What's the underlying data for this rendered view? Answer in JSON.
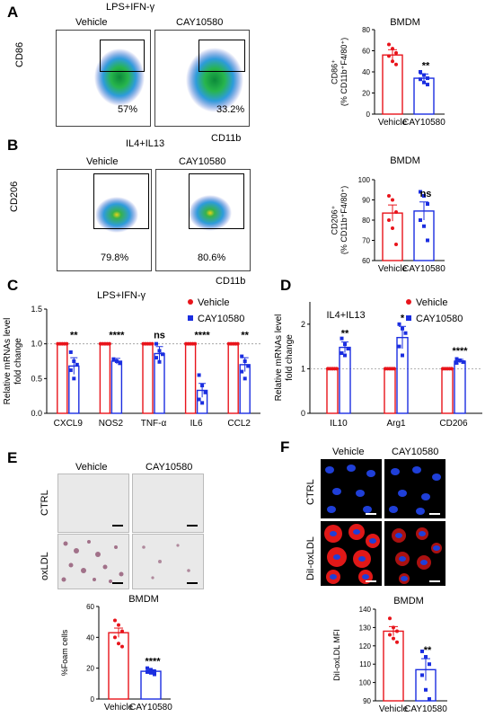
{
  "panels": {
    "A": {
      "letter": "A",
      "condition": "LPS+IFN-γ",
      "groups": [
        "Vehicle",
        "CAY10580"
      ],
      "y_marker": "CD86",
      "x_marker": "CD11b",
      "percents": [
        "57%",
        "33.2%"
      ]
    },
    "B": {
      "letter": "B",
      "condition": "IL4+IL13",
      "groups": [
        "Vehicle",
        "CAY10580"
      ],
      "y_marker": "CD206",
      "x_marker": "CD11b",
      "percents": [
        "79.8%",
        "80.6%"
      ]
    },
    "C": {
      "letter": "C"
    },
    "D": {
      "letter": "D"
    },
    "E": {
      "letter": "E",
      "groups": [
        "Vehicle",
        "CAY10580"
      ],
      "rows": [
        "CTRL",
        "oxLDL"
      ]
    },
    "F": {
      "letter": "F",
      "groups": [
        "Vehicle",
        "CAY10580"
      ],
      "rows": [
        "CTRL",
        "DiI-oxLDL"
      ]
    }
  },
  "colors": {
    "vehicle": "#e8141b",
    "cay": "#1b2ee0"
  },
  "chart_data": [
    {
      "id": "A-bar",
      "type": "bar",
      "title": "BMDM",
      "ylabel_line1": "CD86⁺",
      "ylabel_line2": "(% CD11b⁺F4/80⁺)",
      "categories": [
        "Vehicle",
        "CAY10580"
      ],
      "values": [
        56,
        34
      ],
      "errors": [
        5,
        4
      ],
      "points": [
        [
          66,
          62,
          58,
          55,
          50,
          47
        ],
        [
          40,
          37,
          34,
          33,
          30,
          28
        ]
      ],
      "significance": [
        "",
        "**"
      ],
      "ylim": [
        0,
        80
      ],
      "yticks": [
        0,
        20,
        40,
        60,
        80
      ]
    },
    {
      "id": "B-bar",
      "type": "bar",
      "title": "BMDM",
      "ylabel_line1": "CD206⁺",
      "ylabel_line2": "(% CD11b⁺F4/80⁺)",
      "categories": [
        "Vehicle",
        "CAY10580"
      ],
      "values": [
        83.5,
        84.5
      ],
      "errors": [
        4,
        4.5
      ],
      "points": [
        [
          92,
          90,
          84,
          80,
          76,
          68
        ],
        [
          94,
          92,
          88,
          80,
          77,
          70
        ]
      ],
      "significance": [
        "",
        "ns"
      ],
      "ylim": [
        60,
        100
      ],
      "yticks": [
        60,
        70,
        80,
        90,
        100
      ]
    },
    {
      "id": "C-bar",
      "type": "bar",
      "title": "LPS+IFN-γ",
      "ylabel_line1": "Relative mRNAs level",
      "ylabel_line2": "fold change",
      "categories": [
        "CXCL9",
        "NOS2",
        "TNF-α",
        "IL6",
        "CCL2"
      ],
      "series": [
        {
          "name": "Vehicle",
          "values": [
            1.0,
            1.0,
            1.0,
            1.0,
            1.0
          ],
          "errors": [
            0,
            0,
            0,
            0,
            0
          ]
        },
        {
          "name": "CAY10580",
          "values": [
            0.68,
            0.75,
            0.86,
            0.33,
            0.7
          ],
          "errors": [
            0.12,
            0.04,
            0.1,
            0.1,
            0.1
          ]
        }
      ],
      "points_cay": [
        [
          0.88,
          0.75,
          0.7,
          0.62,
          0.5
        ],
        [
          0.78,
          0.75,
          0.72
        ],
        [
          1.0,
          0.9,
          0.85,
          0.8,
          0.74
        ],
        [
          0.55,
          0.4,
          0.3,
          0.2,
          0.15
        ],
        [
          0.82,
          0.75,
          0.68,
          0.6,
          0.5
        ]
      ],
      "significance": [
        "**",
        "****",
        "ns",
        "****",
        "**"
      ],
      "ylim": [
        0,
        1.5
      ],
      "yticks": [
        0.0,
        0.5,
        1.0,
        1.5
      ],
      "legend": "top-right"
    },
    {
      "id": "D-bar",
      "type": "bar",
      "title": "IL4+IL13",
      "ylabel_line1": "Relative mRNAs level",
      "ylabel_line2": "fold change",
      "categories": [
        "IL10",
        "Arg1",
        "CD206"
      ],
      "series": [
        {
          "name": "Vehicle",
          "values": [
            1.0,
            1.0,
            1.0
          ],
          "errors": [
            0,
            0,
            0
          ]
        },
        {
          "name": "CAY10580",
          "values": [
            1.48,
            1.7,
            1.17
          ],
          "errors": [
            0.12,
            0.25,
            0.04
          ]
        }
      ],
      "points_cay": [
        [
          1.68,
          1.55,
          1.45,
          1.35,
          1.3
        ],
        [
          2.0,
          1.9,
          1.8,
          1.5,
          1.3
        ],
        [
          1.22,
          1.19,
          1.15,
          1.13
        ]
      ],
      "significance": [
        "**",
        "*",
        "****"
      ],
      "ylim": [
        0,
        2.5
      ],
      "yticks": [
        0,
        1,
        2
      ],
      "legend": "top-right"
    },
    {
      "id": "E-bar",
      "type": "bar",
      "title": "BMDM",
      "ylabel_line1": "%Foam cells",
      "ylabel_line2": "",
      "categories": [
        "Vehicle",
        "CAY10580"
      ],
      "values": [
        43,
        18
      ],
      "errors": [
        3,
        1
      ],
      "points": [
        [
          51,
          48,
          44,
          40,
          36,
          34
        ],
        [
          20,
          19,
          18,
          17.5,
          17,
          16
        ]
      ],
      "significance": [
        "",
        "****"
      ],
      "ylim": [
        0,
        60
      ],
      "yticks": [
        0,
        20,
        40,
        60
      ]
    },
    {
      "id": "F-bar",
      "type": "bar",
      "title": "BMDM",
      "ylabel_line1": "DiI-oxLDL MFI",
      "ylabel_line2": "",
      "categories": [
        "Vehicle",
        "CAY10580"
      ],
      "values": [
        128,
        107
      ],
      "errors": [
        2.5,
        6
      ],
      "points": [
        [
          135,
          130,
          128,
          126,
          124,
          122
        ],
        [
          117,
          114,
          110,
          104,
          96,
          91
        ]
      ],
      "significance": [
        "",
        "**"
      ],
      "ylim": [
        90,
        140
      ],
      "yticks": [
        90,
        100,
        110,
        120,
        130,
        140
      ]
    }
  ]
}
